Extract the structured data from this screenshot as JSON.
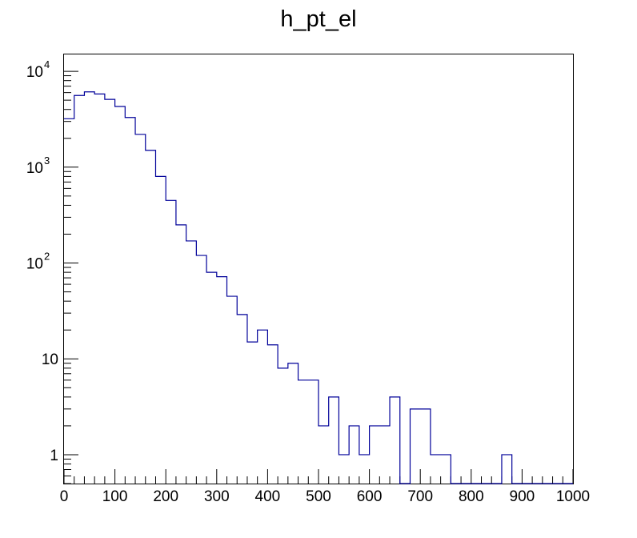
{
  "chart_data": {
    "type": "histogram",
    "title": "h_pt_el",
    "xlabel": "",
    "ylabel": "",
    "xlim": [
      0,
      1000
    ],
    "ylim": [
      0.5,
      15000
    ],
    "y_scale": "log",
    "grid": false,
    "legend": "none",
    "line_color": "#000099",
    "x_ticks": [
      0,
      100,
      200,
      300,
      400,
      500,
      600,
      700,
      800,
      900,
      1000
    ],
    "x_tick_labels": [
      "0",
      "100",
      "200",
      "300",
      "400",
      "500",
      "600",
      "700",
      "800",
      "900",
      "1000"
    ],
    "y_ticks": [
      {
        "value": 1,
        "base": "1",
        "exp": ""
      },
      {
        "value": 10,
        "base": "10",
        "exp": ""
      },
      {
        "value": 100,
        "base": "10",
        "exp": "2"
      },
      {
        "value": 1000,
        "base": "10",
        "exp": "3"
      },
      {
        "value": 10000,
        "base": "10",
        "exp": "4"
      }
    ],
    "bin_edges": [
      0,
      20,
      40,
      60,
      80,
      100,
      120,
      140,
      160,
      180,
      200,
      220,
      240,
      260,
      280,
      300,
      320,
      340,
      360,
      380,
      400,
      420,
      440,
      460,
      480,
      500,
      520,
      540,
      560,
      580,
      600,
      620,
      640,
      660,
      680,
      700,
      720,
      740,
      760,
      780,
      800,
      820,
      840,
      860,
      880,
      900,
      920,
      940,
      960,
      980,
      1000
    ],
    "values": [
      3200,
      5600,
      6100,
      5800,
      5100,
      4300,
      3300,
      2200,
      1500,
      800,
      450,
      250,
      170,
      120,
      80,
      72,
      45,
      29,
      15,
      20,
      14,
      8,
      9,
      6,
      6,
      2,
      4,
      1,
      2,
      1,
      2,
      2,
      4,
      0,
      3,
      3,
      1,
      1,
      0,
      0,
      0,
      0,
      0,
      1,
      0,
      0,
      0,
      0,
      0,
      0
    ]
  }
}
